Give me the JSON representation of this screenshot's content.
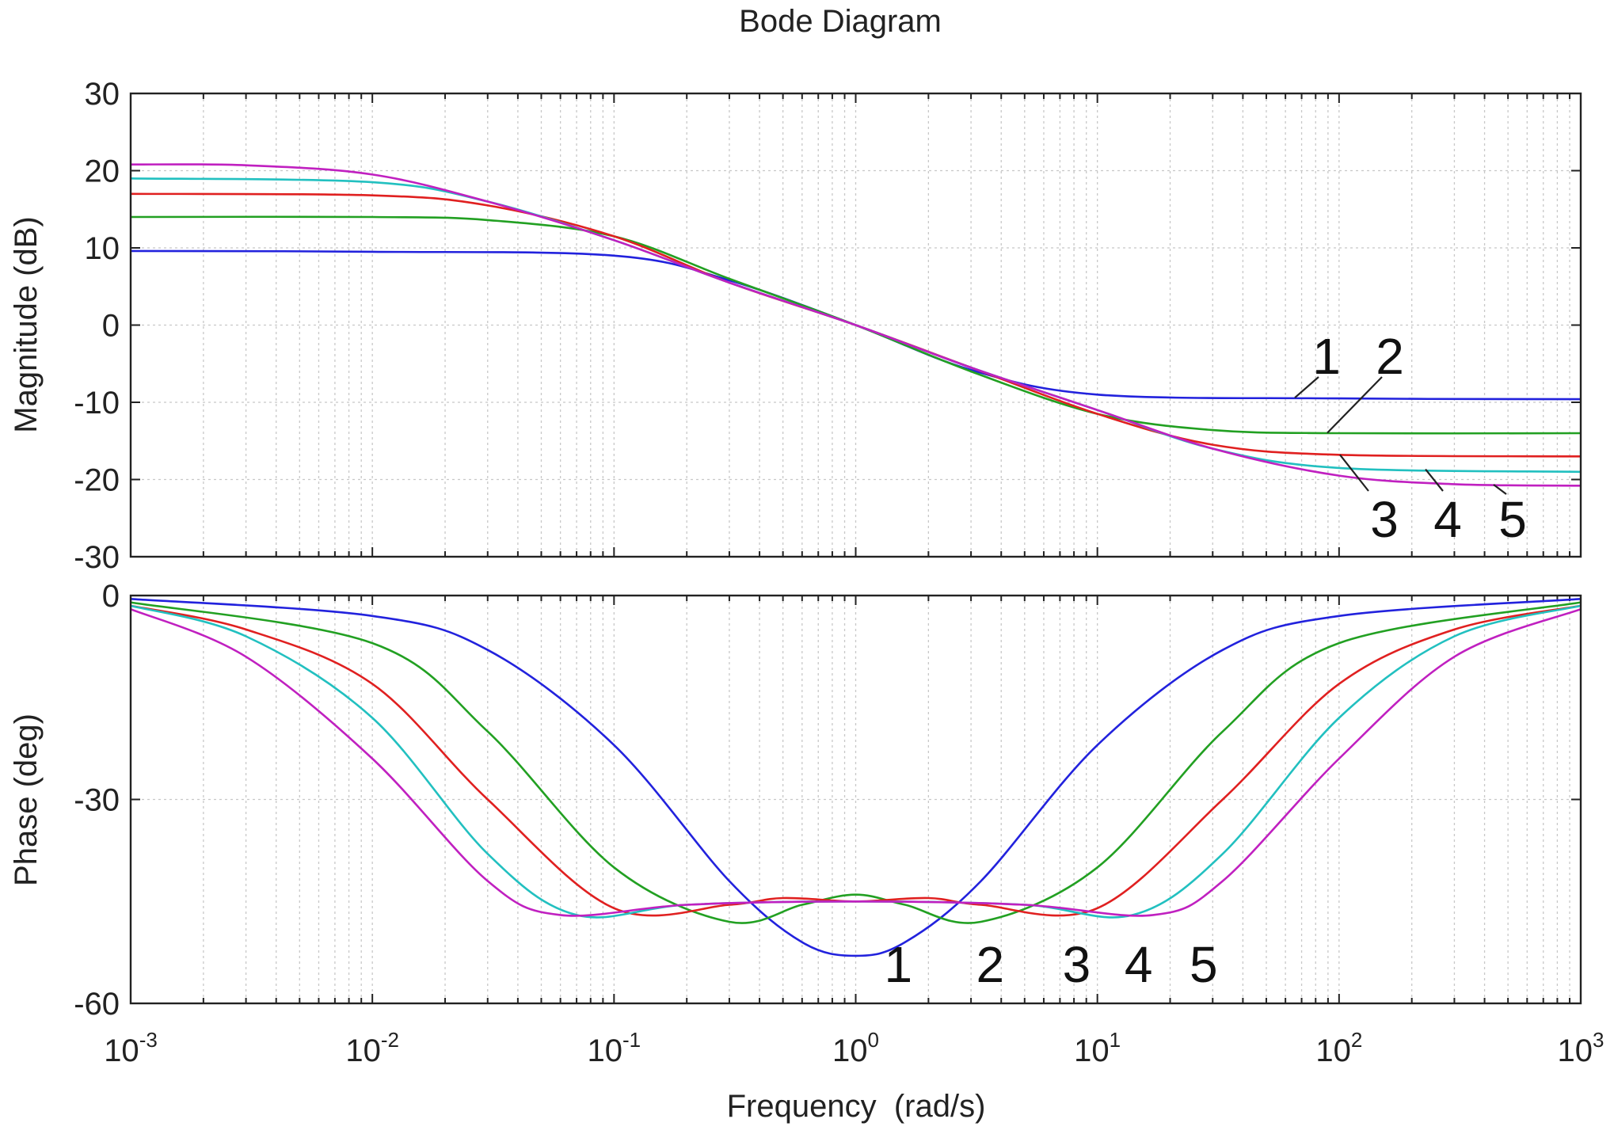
{
  "chart_data": {
    "type": "line",
    "title": "Bode Diagram",
    "xlabel": "Frequency  (rad/s)",
    "x_scale": "log",
    "xlim": [
      0.001,
      1000
    ],
    "x_tick_labels": [
      {
        "base": "10",
        "exp": "-3"
      },
      {
        "base": "10",
        "exp": "-2"
      },
      {
        "base": "10",
        "exp": "-1"
      },
      {
        "base": "10",
        "exp": "0"
      },
      {
        "base": "10",
        "exp": "1"
      },
      {
        "base": "10",
        "exp": "2"
      },
      {
        "base": "10",
        "exp": "3"
      }
    ],
    "grid": true,
    "panels": [
      {
        "name": "magnitude",
        "ylabel": "Magnitude (dB)",
        "ylim": [
          -30,
          30
        ],
        "y_ticks": [
          "30",
          "20",
          "10",
          "0",
          "-10",
          "-20",
          "-30"
        ],
        "series": [
          {
            "name": "1",
            "color": "#2222dd",
            "values": [
              [
                0.001,
                9.6
              ],
              [
                0.01,
                9.5
              ],
              [
                0.1,
                9.0
              ],
              [
                0.3,
                5.8
              ],
              [
                1,
                0
              ],
              [
                3,
                -5.8
              ],
              [
                10,
                -9.0
              ],
              [
                100,
                -9.5
              ],
              [
                1000,
                -9.6
              ]
            ]
          },
          {
            "name": "2",
            "color": "#22a022",
            "values": [
              [
                0.001,
                14.0
              ],
              [
                0.01,
                14.0
              ],
              [
                0.03,
                13.6
              ],
              [
                0.1,
                11.5
              ],
              [
                0.3,
                6
              ],
              [
                1,
                0
              ],
              [
                3,
                -6
              ],
              [
                10,
                -11.5
              ],
              [
                30,
                -13.6
              ],
              [
                100,
                -14.0
              ],
              [
                1000,
                -14.0
              ]
            ]
          },
          {
            "name": "3",
            "color": "#e02020",
            "values": [
              [
                0.001,
                17.0
              ],
              [
                0.01,
                16.8
              ],
              [
                0.03,
                15.5
              ],
              [
                0.1,
                11.5
              ],
              [
                0.3,
                5.5
              ],
              [
                1,
                0
              ],
              [
                3,
                -5.5
              ],
              [
                10,
                -11.5
              ],
              [
                30,
                -15.5
              ],
              [
                100,
                -16.8
              ],
              [
                1000,
                -17.0
              ]
            ]
          },
          {
            "name": "4",
            "color": "#22c0c0",
            "values": [
              [
                0.001,
                19.0
              ],
              [
                0.01,
                18.5
              ],
              [
                0.03,
                16
              ],
              [
                0.1,
                11
              ],
              [
                0.3,
                5.5
              ],
              [
                1,
                0
              ],
              [
                3,
                -5.5
              ],
              [
                10,
                -11
              ],
              [
                30,
                -16
              ],
              [
                100,
                -18.5
              ],
              [
                1000,
                -19.0
              ]
            ]
          },
          {
            "name": "5",
            "color": "#c020c0",
            "values": [
              [
                0.001,
                20.8
              ],
              [
                0.003,
                20.7
              ],
              [
                0.01,
                19.5
              ],
              [
                0.03,
                16
              ],
              [
                0.1,
                11
              ],
              [
                0.3,
                5.5
              ],
              [
                1,
                0
              ],
              [
                3,
                -5.5
              ],
              [
                10,
                -11
              ],
              [
                30,
                -16
              ],
              [
                100,
                -19.5
              ],
              [
                300,
                -20.6
              ],
              [
                1000,
                -20.8
              ]
            ]
          }
        ],
        "labels": [
          {
            "text": "1",
            "series": "1"
          },
          {
            "text": "2",
            "series": "2"
          },
          {
            "text": "3",
            "series": "3"
          },
          {
            "text": "4",
            "series": "4"
          },
          {
            "text": "5",
            "series": "5"
          }
        ]
      },
      {
        "name": "phase",
        "ylabel": "Phase (deg)",
        "ylim": [
          -60,
          0
        ],
        "y_ticks": [
          "0",
          "-30",
          "-60"
        ],
        "series": [
          {
            "name": "1",
            "color": "#2222dd",
            "values": [
              [
                0.001,
                -0.5
              ],
              [
                0.01,
                -3
              ],
              [
                0.03,
                -8
              ],
              [
                0.1,
                -22
              ],
              [
                0.3,
                -42
              ],
              [
                0.6,
                -51
              ],
              [
                1,
                -53
              ],
              [
                1.6,
                -51
              ],
              [
                3.3,
                -42
              ],
              [
                10,
                -22
              ],
              [
                33,
                -8
              ],
              [
                100,
                -3
              ],
              [
                1000,
                -0.5
              ]
            ]
          },
          {
            "name": "2",
            "color": "#22a022",
            "values": [
              [
                0.001,
                -1
              ],
              [
                0.01,
                -7
              ],
              [
                0.03,
                -20
              ],
              [
                0.1,
                -40
              ],
              [
                0.3,
                -48
              ],
              [
                0.6,
                -45.5
              ],
              [
                1,
                -44
              ],
              [
                1.6,
                -45.5
              ],
              [
                3.3,
                -48
              ],
              [
                10,
                -40
              ],
              [
                33,
                -20
              ],
              [
                100,
                -7
              ],
              [
                1000,
                -1
              ]
            ]
          },
          {
            "name": "3",
            "color": "#e02020",
            "values": [
              [
                0.001,
                -1.5
              ],
              [
                0.003,
                -5
              ],
              [
                0.01,
                -13
              ],
              [
                0.03,
                -30
              ],
              [
                0.1,
                -46
              ],
              [
                0.3,
                -45.5
              ],
              [
                0.5,
                -44.5
              ],
              [
                1,
                -45
              ],
              [
                2,
                -44.5
              ],
              [
                3.3,
                -45.5
              ],
              [
                10,
                -46
              ],
              [
                33,
                -30
              ],
              [
                100,
                -13
              ],
              [
                300,
                -5
              ],
              [
                1000,
                -1.5
              ]
            ]
          },
          {
            "name": "4",
            "color": "#22c0c0",
            "values": [
              [
                0.001,
                -1.5
              ],
              [
                0.003,
                -6
              ],
              [
                0.01,
                -18
              ],
              [
                0.03,
                -38
              ],
              [
                0.07,
                -47
              ],
              [
                0.2,
                -45.5
              ],
              [
                1,
                -45
              ],
              [
                5,
                -45.5
              ],
              [
                14,
                -47
              ],
              [
                33,
                -38
              ],
              [
                100,
                -18
              ],
              [
                300,
                -6
              ],
              [
                1000,
                -1.5
              ]
            ]
          },
          {
            "name": "5",
            "color": "#c020c0",
            "values": [
              [
                0.001,
                -2
              ],
              [
                0.003,
                -9
              ],
              [
                0.01,
                -24
              ],
              [
                0.03,
                -42
              ],
              [
                0.06,
                -47
              ],
              [
                0.2,
                -45.5
              ],
              [
                1,
                -45
              ],
              [
                5,
                -45.5
              ],
              [
                17,
                -47
              ],
              [
                33,
                -42
              ],
              [
                100,
                -24
              ],
              [
                300,
                -9
              ],
              [
                1000,
                -2
              ]
            ]
          }
        ],
        "labels": [
          {
            "text": "1",
            "x": 1.5
          },
          {
            "text": "2",
            "x": 3.6
          },
          {
            "text": "3",
            "x": 8.2
          },
          {
            "text": "4",
            "x": 14.8
          },
          {
            "text": "5",
            "x": 27.5
          }
        ]
      }
    ]
  }
}
